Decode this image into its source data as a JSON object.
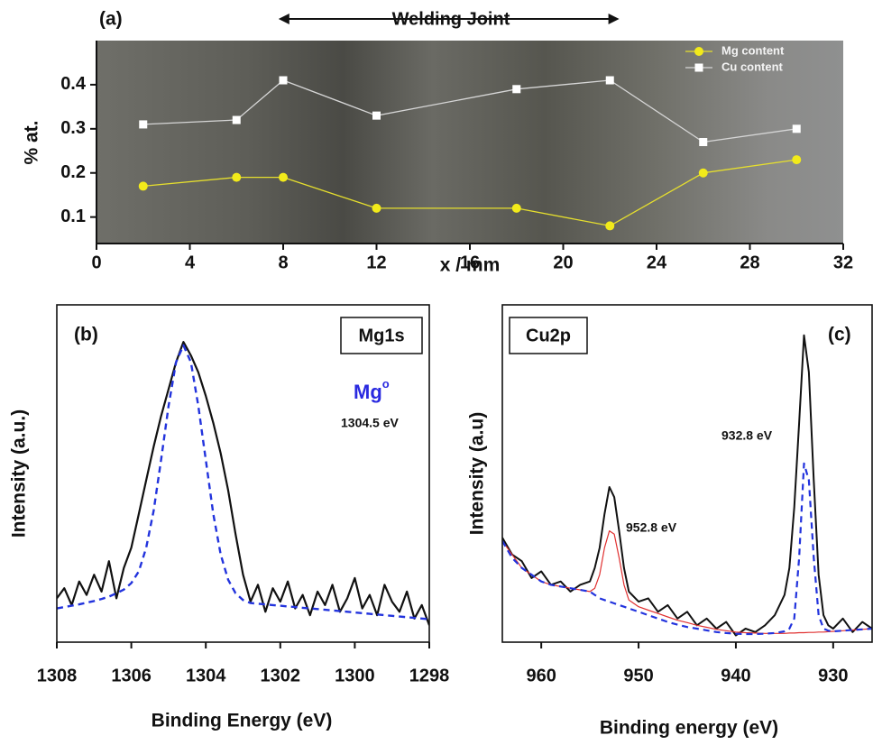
{
  "chart_data": [
    {
      "type": "line",
      "panel_label": "(a)",
      "annotation": {
        "text": "Welding Joint",
        "x_from": 7.8,
        "x_to": 22.4
      },
      "xlabel": "x / mm",
      "ylabel": "% at.",
      "x": [
        2,
        6,
        8,
        12,
        18,
        22,
        26,
        30
      ],
      "series": [
        {
          "name": "Mg content",
          "color": "#e6df2e",
          "marker": "circle",
          "marker_color": "#f2ea1a",
          "values": [
            0.17,
            0.19,
            0.19,
            0.12,
            0.12,
            0.08,
            0.2,
            0.23
          ]
        },
        {
          "name": "Cu content",
          "color": "#d6d6d6",
          "marker": "square",
          "marker_color": "#ffffff",
          "values": [
            0.31,
            0.32,
            0.41,
            0.33,
            0.39,
            0.41,
            0.27,
            0.3
          ]
        }
      ],
      "xlim": [
        0,
        32
      ],
      "xticks": [
        0,
        4,
        8,
        12,
        16,
        20,
        24,
        28,
        32
      ],
      "ylim": [
        0.04,
        0.5
      ],
      "yticks": [
        0.1,
        0.2,
        0.3,
        0.4
      ],
      "legend": "upper right"
    },
    {
      "type": "line",
      "panel_label": "(b)",
      "box_label": "Mg1s",
      "annotations": {
        "species": "Mg",
        "species_sup": "o",
        "peak": "1304.5 eV"
      },
      "xlabel": "Binding Energy (eV)",
      "ylabel": "Intensity (a.u.)",
      "x": [
        1308,
        1307.8,
        1307.6,
        1307.4,
        1307.2,
        1307,
        1306.8,
        1306.6,
        1306.4,
        1306.2,
        1306,
        1305.8,
        1305.6,
        1305.4,
        1305.2,
        1305,
        1304.8,
        1304.6,
        1304.4,
        1304.2,
        1304,
        1303.8,
        1303.6,
        1303.4,
        1303.2,
        1303,
        1302.8,
        1302.6,
        1302.4,
        1302.2,
        1302,
        1301.8,
        1301.6,
        1301.4,
        1301.2,
        1301,
        1300.8,
        1300.6,
        1300.4,
        1300.2,
        1300,
        1299.8,
        1299.6,
        1299.4,
        1299.2,
        1299,
        1298.8,
        1298.6,
        1298.4,
        1298.2,
        1298
      ],
      "series": [
        {
          "color": "#111111",
          "linestyle": "solid",
          "width": 2.2,
          "values": [
            13,
            16,
            11,
            18,
            14,
            20,
            15,
            24,
            13,
            22,
            28,
            38,
            48,
            58,
            67,
            75,
            83,
            89,
            85,
            80,
            73,
            65,
            56,
            45,
            32,
            20,
            12,
            17,
            9,
            16,
            12,
            18,
            10,
            14,
            8,
            15,
            11,
            17,
            9,
            13,
            19,
            10,
            14,
            8,
            17,
            12,
            9,
            15,
            7,
            11,
            5
          ]
        },
        {
          "color": "#2233dd",
          "linestyle": "dashed",
          "width": 2.4,
          "values": [
            10,
            10.4,
            10.8,
            11.2,
            11.7,
            12.2,
            12.8,
            13.5,
            14.5,
            15.6,
            17.5,
            21,
            28,
            39,
            54,
            70,
            83,
            88,
            83,
            70,
            54,
            38,
            26,
            18.5,
            14.5,
            12.5,
            11.6,
            11.4,
            11.2,
            11,
            10.8,
            10.6,
            10.4,
            10.2,
            10,
            9.8,
            9.6,
            9.4,
            9.2,
            9,
            8.8,
            8.6,
            8.4,
            8.2,
            8,
            7.8,
            7.6,
            7.4,
            7.2,
            7,
            6.8
          ]
        }
      ],
      "xlim": [
        1308,
        1298
      ],
      "xticks": [
        1308,
        1306,
        1304,
        1302,
        1300,
        1298
      ],
      "ylim": [
        0,
        100
      ],
      "frame": true
    },
    {
      "type": "line",
      "panel_label": "(c)",
      "box_label": "Cu2p",
      "annotations": {
        "peak1": "952.8 eV",
        "peak2": "932.8 eV"
      },
      "xlabel": "Binding energy (eV)",
      "ylabel": "Intensity (a.u)",
      "x": [
        964,
        963,
        962,
        961,
        960,
        959,
        958,
        957,
        956,
        955,
        954.5,
        954,
        953.5,
        953,
        952.5,
        952,
        951.5,
        951,
        950,
        949,
        948,
        947,
        946,
        945,
        944,
        943,
        942,
        941,
        940,
        939,
        938,
        937,
        936,
        935,
        934.5,
        934,
        933.5,
        933,
        932.5,
        932,
        931.5,
        931,
        930.5,
        930,
        929,
        928,
        927,
        926
      ],
      "series": [
        {
          "color": "#111111",
          "linestyle": "solid",
          "width": 2,
          "values": [
            31,
            26,
            24,
            19,
            21,
            17,
            18,
            15,
            17,
            18,
            22,
            28,
            38,
            46,
            43,
            33,
            22,
            15,
            12,
            13,
            9,
            11,
            7,
            9,
            5,
            7,
            4,
            6,
            2,
            4,
            3,
            5,
            8,
            14,
            22,
            40,
            65,
            91,
            80,
            48,
            20,
            8,
            5,
            4,
            7,
            3,
            6,
            4
          ]
        },
        {
          "color": "#e03030",
          "linestyle": "solid",
          "width": 1.2,
          "values": [
            30,
            26,
            22,
            20,
            18,
            17,
            16.5,
            16,
            15.5,
            15,
            16,
            20,
            28,
            33,
            32,
            25,
            17,
            12.5,
            10.5,
            9.5,
            8.5,
            7.5,
            6.5,
            5.8,
            5,
            4.4,
            3.8,
            3.4,
            3,
            2.8,
            2.7,
            2.6,
            2.6,
            2.6,
            2.7,
            2.7,
            2.8,
            2.8,
            2.9,
            2.9,
            3,
            3,
            3.1,
            3.2,
            3.4,
            3.6,
            3.8,
            4
          ]
        },
        {
          "color": "#2233dd",
          "linestyle": "dashed",
          "width": 2.2,
          "values": [
            30,
            25,
            22,
            20,
            18,
            17,
            16.5,
            16,
            15.5,
            15,
            14,
            13,
            12.5,
            12,
            11.5,
            11,
            10.5,
            10,
            9,
            8,
            7,
            6,
            5.2,
            4.5,
            4,
            3.5,
            3,
            2.7,
            2.5,
            2.4,
            2.4,
            2.5,
            2.7,
            3.2,
            4,
            7,
            25,
            53,
            48,
            25,
            8,
            4,
            3.4,
            3.2,
            3.4,
            3.6,
            3.8,
            4
          ]
        }
      ],
      "xlim": [
        964,
        926
      ],
      "xticks": [
        960,
        950,
        940,
        930
      ],
      "ylim": [
        0,
        100
      ],
      "frame": true
    }
  ]
}
